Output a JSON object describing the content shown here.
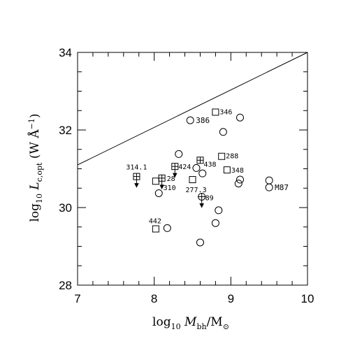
{
  "chart_data": {
    "type": "scatter",
    "xlabel_parts": [
      "log",
      "10",
      " ",
      "M",
      "bh",
      "/M",
      "⊙"
    ],
    "ylabel_parts": [
      "log",
      "10",
      " ",
      "L",
      "c,opt",
      "  (W Å",
      "−1",
      ")"
    ],
    "xlim": [
      7,
      10
    ],
    "ylim": [
      28,
      34
    ],
    "x_ticks": [
      "7",
      "8",
      "9",
      "10"
    ],
    "y_ticks": [
      "28",
      "30",
      "32",
      "34"
    ],
    "grid": false,
    "line": {
      "x": [
        7,
        10
      ],
      "y": [
        31.1,
        34.0
      ]
    },
    "circles": [
      {
        "x": 8.47,
        "y": 32.25,
        "label": "386"
      },
      {
        "x": 9.12,
        "y": 32.32
      },
      {
        "x": 8.9,
        "y": 31.95
      },
      {
        "x": 8.32,
        "y": 31.38
      },
      {
        "x": 8.55,
        "y": 31.02
      },
      {
        "x": 8.63,
        "y": 30.88
      },
      {
        "x": 9.12,
        "y": 30.72
      },
      {
        "x": 9.1,
        "y": 30.62
      },
      {
        "x": 9.5,
        "y": 30.7
      },
      {
        "x": 9.5,
        "y": 30.52,
        "label": "M87"
      },
      {
        "x": 8.06,
        "y": 30.37
      },
      {
        "x": 8.84,
        "y": 29.93
      },
      {
        "x": 8.8,
        "y": 29.6
      },
      {
        "x": 8.17,
        "y": 29.47
      },
      {
        "x": 8.6,
        "y": 29.1
      }
    ],
    "squares": [
      {
        "x": 8.8,
        "y": 32.46,
        "label": "346"
      },
      {
        "x": 8.88,
        "y": 31.32,
        "label": "288"
      },
      {
        "x": 8.95,
        "y": 30.97,
        "label": "348"
      },
      {
        "x": 8.5,
        "y": 30.72,
        "label": "277.3"
      },
      {
        "x": 8.02,
        "y": 30.68
      },
      {
        "x": 8.02,
        "y": 29.45,
        "label": "442"
      }
    ],
    "crossed_squares": [
      {
        "x": 7.77,
        "y": 30.8,
        "label": "314.1",
        "upper_limit": true
      },
      {
        "x": 8.1,
        "y": 30.76,
        "label": "310",
        "upper_limit": true
      },
      {
        "x": 8.27,
        "y": 31.06,
        "label": "424",
        "upper_limit": true
      },
      {
        "x": 8.6,
        "y": 31.22,
        "label": "438",
        "upper_limit": false
      }
    ],
    "crossed_circles": [
      {
        "x": 8.62,
        "y": 30.28,
        "label": "89",
        "upper_limit": true
      }
    ],
    "extra_labels": [
      {
        "text": "28"
      }
    ]
  }
}
